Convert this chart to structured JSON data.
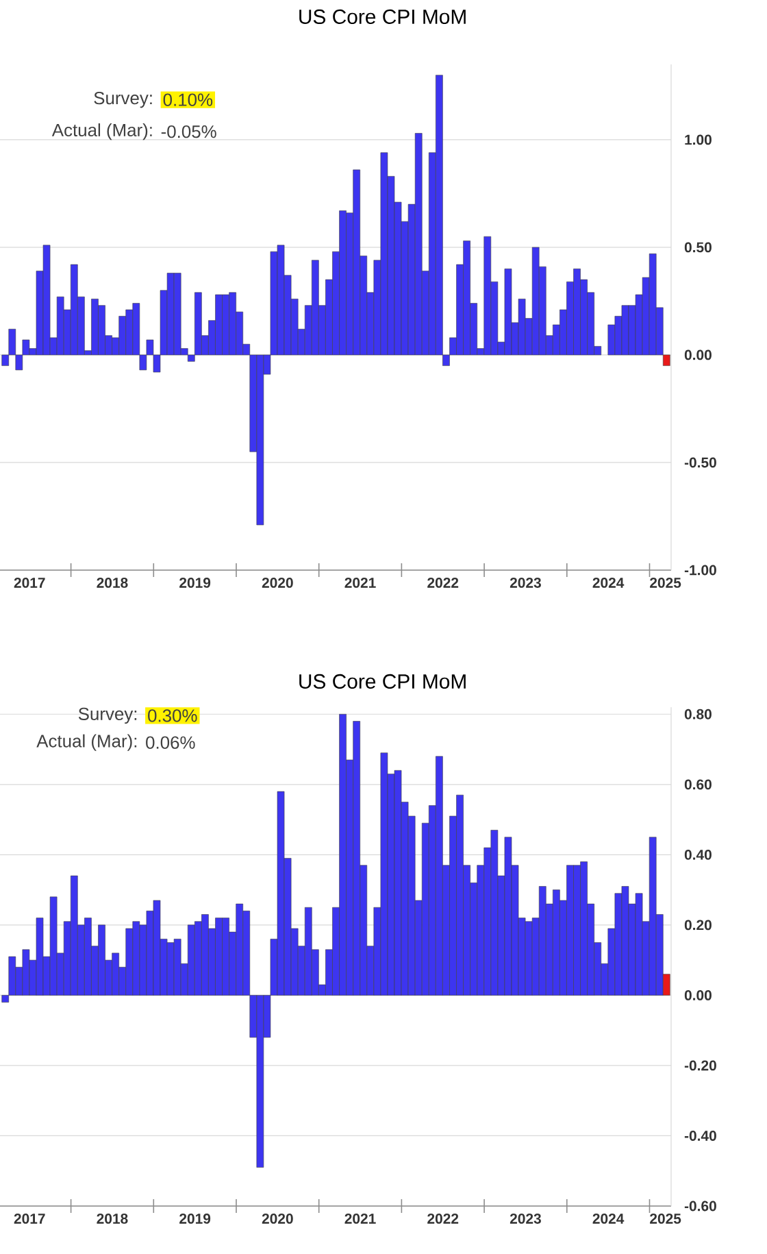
{
  "chart_data": [
    {
      "type": "bar",
      "title": "US Core CPI MoM",
      "annotations": [
        "Survey:",
        "0.10%",
        "Actual (Mar):",
        "-0.05%"
      ],
      "x": [
        "2017-03-15",
        "2017-04-15",
        "2017-05-15",
        "2017-06-15",
        "2017-07-15",
        "2017-08-15",
        "2017-09-15",
        "2017-10-15",
        "2017-11-15",
        "2017-12-15",
        "2018-01-15",
        "2018-02-15",
        "2018-03-15",
        "2018-04-15",
        "2018-05-15",
        "2018-06-15",
        "2018-07-15",
        "2018-08-15",
        "2018-09-15",
        "2018-10-15",
        "2018-11-15",
        "2018-12-15",
        "2019-01-15",
        "2019-02-15",
        "2019-03-15",
        "2019-04-15",
        "2019-05-15",
        "2019-06-15",
        "2019-07-15",
        "2019-08-15",
        "2019-09-15",
        "2019-10-15",
        "2019-11-15",
        "2019-12-15",
        "2020-01-15",
        "2020-02-15",
        "2020-03-15",
        "2020-04-15",
        "2020-05-15",
        "2020-06-15",
        "2020-07-15",
        "2020-08-15",
        "2020-09-15",
        "2020-10-15",
        "2020-11-15",
        "2020-12-15",
        "2021-01-15",
        "2021-02-15",
        "2021-03-15",
        "2021-04-15",
        "2021-05-15",
        "2021-06-15",
        "2021-07-15",
        "2021-08-15",
        "2021-09-15",
        "2021-10-15",
        "2021-11-15",
        "2021-12-15",
        "2022-01-15",
        "2022-02-15",
        "2022-03-15",
        "2022-04-15",
        "2022-05-15",
        "2022-06-15",
        "2022-07-15",
        "2022-08-15",
        "2022-09-15",
        "2022-10-15",
        "2022-11-15",
        "2022-12-15",
        "2023-01-15",
        "2023-02-15",
        "2023-03-15",
        "2023-04-15",
        "2023-05-15",
        "2023-06-15",
        "2023-07-15",
        "2023-08-15",
        "2023-09-15",
        "2023-10-15",
        "2023-11-15",
        "2023-12-15",
        "2024-01-15",
        "2024-02-15",
        "2024-03-15",
        "2024-04-15",
        "2024-05-15",
        "2024-06-15",
        "2024-07-15",
        "2024-08-15",
        "2024-09-15",
        "2024-10-15",
        "2024-11-15",
        "2024-12-15",
        "2025-01-15",
        "2025-02-15",
        "2025-03-15"
      ],
      "values": [
        -0.05,
        0.12,
        -0.07,
        0.07,
        0.03,
        0.39,
        0.51,
        0.08,
        0.27,
        0.21,
        0.42,
        0.27,
        0.02,
        0.26,
        0.23,
        0.09,
        0.08,
        0.18,
        0.21,
        0.24,
        -0.07,
        0.07,
        -0.08,
        0.3,
        0.38,
        0.38,
        0.03,
        -0.03,
        0.29,
        0.09,
        0.16,
        0.28,
        0.28,
        0.29,
        0.2,
        0.05,
        -0.45,
        -0.79,
        -0.09,
        0.48,
        0.51,
        0.37,
        0.26,
        0.12,
        0.23,
        0.44,
        0.23,
        0.35,
        0.48,
        0.67,
        0.66,
        0.86,
        0.46,
        0.29,
        0.44,
        0.94,
        0.83,
        0.71,
        0.62,
        0.7,
        1.03,
        0.39,
        0.94,
        1.3,
        -0.05,
        0.08,
        0.42,
        0.53,
        0.24,
        0.03,
        0.55,
        0.34,
        0.06,
        0.4,
        0.15,
        0.26,
        0.17,
        0.5,
        0.41,
        0.09,
        0.14,
        0.21,
        0.34,
        0.4,
        0.35,
        0.29,
        0.04,
        0.0,
        0.14,
        0.18,
        0.23,
        0.23,
        0.28,
        0.36,
        0.47,
        0.22,
        -0.05
      ],
      "colors": [
        "#3d35f0",
        "#3d35f0",
        "#3d35f0",
        "#3d35f0",
        "#3d35f0",
        "#3d35f0",
        "#3d35f0",
        "#3d35f0",
        "#3d35f0",
        "#3d35f0",
        "#3d35f0",
        "#3d35f0",
        "#3d35f0",
        "#3d35f0",
        "#3d35f0",
        "#3d35f0",
        "#3d35f0",
        "#3d35f0",
        "#3d35f0",
        "#3d35f0",
        "#3d35f0",
        "#3d35f0",
        "#3d35f0",
        "#3d35f0",
        "#3d35f0",
        "#3d35f0",
        "#3d35f0",
        "#3d35f0",
        "#3d35f0",
        "#3d35f0",
        "#3d35f0",
        "#3d35f0",
        "#3d35f0",
        "#3d35f0",
        "#3d35f0",
        "#3d35f0",
        "#3d35f0",
        "#3d35f0",
        "#3d35f0",
        "#3d35f0",
        "#3d35f0",
        "#3d35f0",
        "#3d35f0",
        "#3d35f0",
        "#3d35f0",
        "#3d35f0",
        "#3d35f0",
        "#3d35f0",
        "#3d35f0",
        "#3d35f0",
        "#3d35f0",
        "#3d35f0",
        "#3d35f0",
        "#3d35f0",
        "#3d35f0",
        "#3d35f0",
        "#3d35f0",
        "#3d35f0",
        "#3d35f0",
        "#3d35f0",
        "#3d35f0",
        "#3d35f0",
        "#3d35f0",
        "#3d35f0",
        "#3d35f0",
        "#3d35f0",
        "#3d35f0",
        "#3d35f0",
        "#3d35f0",
        "#3d35f0",
        "#3d35f0",
        "#3d35f0",
        "#3d35f0",
        "#3d35f0",
        "#3d35f0",
        "#3d35f0",
        "#3d35f0",
        "#3d35f0",
        "#3d35f0",
        "#3d35f0",
        "#3d35f0",
        "#3d35f0",
        "#3d35f0",
        "#3d35f0",
        "#3d35f0",
        "#3d35f0",
        "#3d35f0",
        "#3d35f0",
        "#3d35f0",
        "#3d35f0",
        "#3d35f0",
        "#3d35f0",
        "#3d35f0",
        "#3d35f0",
        "#3d35f0",
        "#3d35f0",
        "#e81a1a"
      ],
      "xlim": [
        "2017-02-22",
        "2025-04-05"
      ],
      "xticks": [
        {
          "value": "2017-07-01",
          "label": "2017"
        },
        {
          "value": "2018-07-01",
          "label": "2018"
        },
        {
          "value": "2019-07-01",
          "label": "2019"
        },
        {
          "value": "2020-07-01",
          "label": "2020"
        },
        {
          "value": "2021-07-01",
          "label": "2021"
        },
        {
          "value": "2022-07-01",
          "label": "2022"
        },
        {
          "value": "2023-07-01",
          "label": "2023"
        },
        {
          "value": "2024-07-01",
          "label": "2024"
        },
        {
          "value": "2025-03-10",
          "label": "2025"
        },
        {
          "value": "2018-01-01",
          "label": null
        },
        {
          "value": "2019-01-01",
          "label": null
        },
        {
          "value": "2020-01-01",
          "label": null
        },
        {
          "value": "2021-01-01",
          "label": null
        },
        {
          "value": "2022-01-01",
          "label": null
        },
        {
          "value": "2023-01-01",
          "label": null
        },
        {
          "value": "2024-01-01",
          "label": null
        },
        {
          "value": "2025-01-01",
          "label": null
        }
      ],
      "ylim": [
        -1.0,
        1.35
      ],
      "yticks": [
        {
          "value": -1.0,
          "label": "-1.00"
        },
        {
          "value": -0.5,
          "label": "-0.50"
        },
        {
          "value": 0,
          "label": "0.00"
        },
        {
          "value": 0.5,
          "label": "0.50"
        },
        {
          "value": 1.0,
          "label": "1.00"
        }
      ],
      "grid": "y"
    },
    {
      "type": "bar",
      "title": "US Core CPI MoM",
      "annotations": [
        "Survey:",
        "0.30%",
        "Actual (Mar):",
        "0.06%"
      ],
      "x": [
        "2017-03-15",
        "2017-04-15",
        "2017-05-15",
        "2017-06-15",
        "2017-07-15",
        "2017-08-15",
        "2017-09-15",
        "2017-10-15",
        "2017-11-15",
        "2017-12-15",
        "2018-01-15",
        "2018-02-15",
        "2018-03-15",
        "2018-04-15",
        "2018-05-15",
        "2018-06-15",
        "2018-07-15",
        "2018-08-15",
        "2018-09-15",
        "2018-10-15",
        "2018-11-15",
        "2018-12-15",
        "2019-01-15",
        "2019-02-15",
        "2019-03-15",
        "2019-04-15",
        "2019-05-15",
        "2019-06-15",
        "2019-07-15",
        "2019-08-15",
        "2019-09-15",
        "2019-10-15",
        "2019-11-15",
        "2019-12-15",
        "2020-01-15",
        "2020-02-15",
        "2020-03-15",
        "2020-04-15",
        "2020-05-15",
        "2020-06-15",
        "2020-07-15",
        "2020-08-15",
        "2020-09-15",
        "2020-10-15",
        "2020-11-15",
        "2020-12-15",
        "2021-01-15",
        "2021-02-15",
        "2021-03-15",
        "2021-04-15",
        "2021-05-15",
        "2021-06-15",
        "2021-07-15",
        "2021-08-15",
        "2021-09-15",
        "2021-10-15",
        "2021-11-15",
        "2021-12-15",
        "2022-01-15",
        "2022-02-15",
        "2022-03-15",
        "2022-04-15",
        "2022-05-15",
        "2022-06-15",
        "2022-07-15",
        "2022-08-15",
        "2022-09-15",
        "2022-10-15",
        "2022-11-15",
        "2022-12-15",
        "2023-01-15",
        "2023-02-15",
        "2023-03-15",
        "2023-04-15",
        "2023-05-15",
        "2023-06-15",
        "2023-07-15",
        "2023-08-15",
        "2023-09-15",
        "2023-10-15",
        "2023-11-15",
        "2023-12-15",
        "2024-01-15",
        "2024-02-15",
        "2024-03-15",
        "2024-04-15",
        "2024-05-15",
        "2024-06-15",
        "2024-07-15",
        "2024-08-15",
        "2024-09-15",
        "2024-10-15",
        "2024-11-15",
        "2024-12-15",
        "2025-01-15",
        "2025-02-15",
        "2025-03-15"
      ],
      "values": [
        -0.02,
        0.11,
        0.08,
        0.13,
        0.1,
        0.22,
        0.11,
        0.28,
        0.12,
        0.21,
        0.34,
        0.2,
        0.22,
        0.14,
        0.2,
        0.1,
        0.12,
        0.08,
        0.19,
        0.21,
        0.2,
        0.24,
        0.27,
        0.16,
        0.15,
        0.16,
        0.09,
        0.2,
        0.21,
        0.23,
        0.19,
        0.22,
        0.22,
        0.18,
        0.26,
        0.24,
        -0.12,
        -0.49,
        -0.12,
        0.16,
        0.58,
        0.39,
        0.19,
        0.14,
        0.25,
        0.13,
        0.03,
        0.13,
        0.25,
        0.8,
        0.67,
        0.78,
        0.37,
        0.14,
        0.25,
        0.69,
        0.63,
        0.64,
        0.55,
        0.51,
        0.27,
        0.49,
        0.54,
        0.68,
        0.37,
        0.51,
        0.57,
        0.37,
        0.32,
        0.37,
        0.42,
        0.47,
        0.34,
        0.45,
        0.37,
        0.22,
        0.21,
        0.22,
        0.31,
        0.26,
        0.3,
        0.27,
        0.37,
        0.37,
        0.38,
        0.26,
        0.15,
        0.09,
        0.19,
        0.29,
        0.31,
        0.26,
        0.29,
        0.21,
        0.45,
        0.23,
        0.06
      ],
      "colors": [
        "#3d35f0",
        "#3d35f0",
        "#3d35f0",
        "#3d35f0",
        "#3d35f0",
        "#3d35f0",
        "#3d35f0",
        "#3d35f0",
        "#3d35f0",
        "#3d35f0",
        "#3d35f0",
        "#3d35f0",
        "#3d35f0",
        "#3d35f0",
        "#3d35f0",
        "#3d35f0",
        "#3d35f0",
        "#3d35f0",
        "#3d35f0",
        "#3d35f0",
        "#3d35f0",
        "#3d35f0",
        "#3d35f0",
        "#3d35f0",
        "#3d35f0",
        "#3d35f0",
        "#3d35f0",
        "#3d35f0",
        "#3d35f0",
        "#3d35f0",
        "#3d35f0",
        "#3d35f0",
        "#3d35f0",
        "#3d35f0",
        "#3d35f0",
        "#3d35f0",
        "#3d35f0",
        "#3d35f0",
        "#3d35f0",
        "#3d35f0",
        "#3d35f0",
        "#3d35f0",
        "#3d35f0",
        "#3d35f0",
        "#3d35f0",
        "#3d35f0",
        "#3d35f0",
        "#3d35f0",
        "#3d35f0",
        "#3d35f0",
        "#3d35f0",
        "#3d35f0",
        "#3d35f0",
        "#3d35f0",
        "#3d35f0",
        "#3d35f0",
        "#3d35f0",
        "#3d35f0",
        "#3d35f0",
        "#3d35f0",
        "#3d35f0",
        "#3d35f0",
        "#3d35f0",
        "#3d35f0",
        "#3d35f0",
        "#3d35f0",
        "#3d35f0",
        "#3d35f0",
        "#3d35f0",
        "#3d35f0",
        "#3d35f0",
        "#3d35f0",
        "#3d35f0",
        "#3d35f0",
        "#3d35f0",
        "#3d35f0",
        "#3d35f0",
        "#3d35f0",
        "#3d35f0",
        "#3d35f0",
        "#3d35f0",
        "#3d35f0",
        "#3d35f0",
        "#3d35f0",
        "#3d35f0",
        "#3d35f0",
        "#3d35f0",
        "#3d35f0",
        "#3d35f0",
        "#3d35f0",
        "#3d35f0",
        "#3d35f0",
        "#3d35f0",
        "#3d35f0",
        "#3d35f0",
        "#3d35f0",
        "#e81a1a"
      ],
      "xlim": [
        "2017-02-22",
        "2025-04-05"
      ],
      "xticks": [
        {
          "value": "2017-07-01",
          "label": "2017"
        },
        {
          "value": "2018-07-01",
          "label": "2018"
        },
        {
          "value": "2019-07-01",
          "label": "2019"
        },
        {
          "value": "2020-07-01",
          "label": "2020"
        },
        {
          "value": "2021-07-01",
          "label": "2021"
        },
        {
          "value": "2022-07-01",
          "label": "2022"
        },
        {
          "value": "2023-07-01",
          "label": "2023"
        },
        {
          "value": "2024-07-01",
          "label": "2024"
        },
        {
          "value": "2025-03-10",
          "label": "2025"
        },
        {
          "value": "2018-01-01",
          "label": null
        },
        {
          "value": "2019-01-01",
          "label": null
        },
        {
          "value": "2020-01-01",
          "label": null
        },
        {
          "value": "2021-01-01",
          "label": null
        },
        {
          "value": "2022-01-01",
          "label": null
        },
        {
          "value": "2023-01-01",
          "label": null
        },
        {
          "value": "2024-01-01",
          "label": null
        },
        {
          "value": "2025-01-01",
          "label": null
        }
      ],
      "ylim": [
        -0.6,
        0.82
      ],
      "yticks": [
        {
          "value": -0.6,
          "label": "-0.60"
        },
        {
          "value": -0.4,
          "label": "-0.40"
        },
        {
          "value": -0.2,
          "label": "-0.20"
        },
        {
          "value": 0,
          "label": "0.00"
        },
        {
          "value": 0.2,
          "label": "0.20"
        },
        {
          "value": 0.4,
          "label": "0.40"
        },
        {
          "value": 0.6,
          "label": "0.60"
        },
        {
          "value": 0.8,
          "label": "0.80"
        }
      ],
      "grid": "y"
    }
  ]
}
